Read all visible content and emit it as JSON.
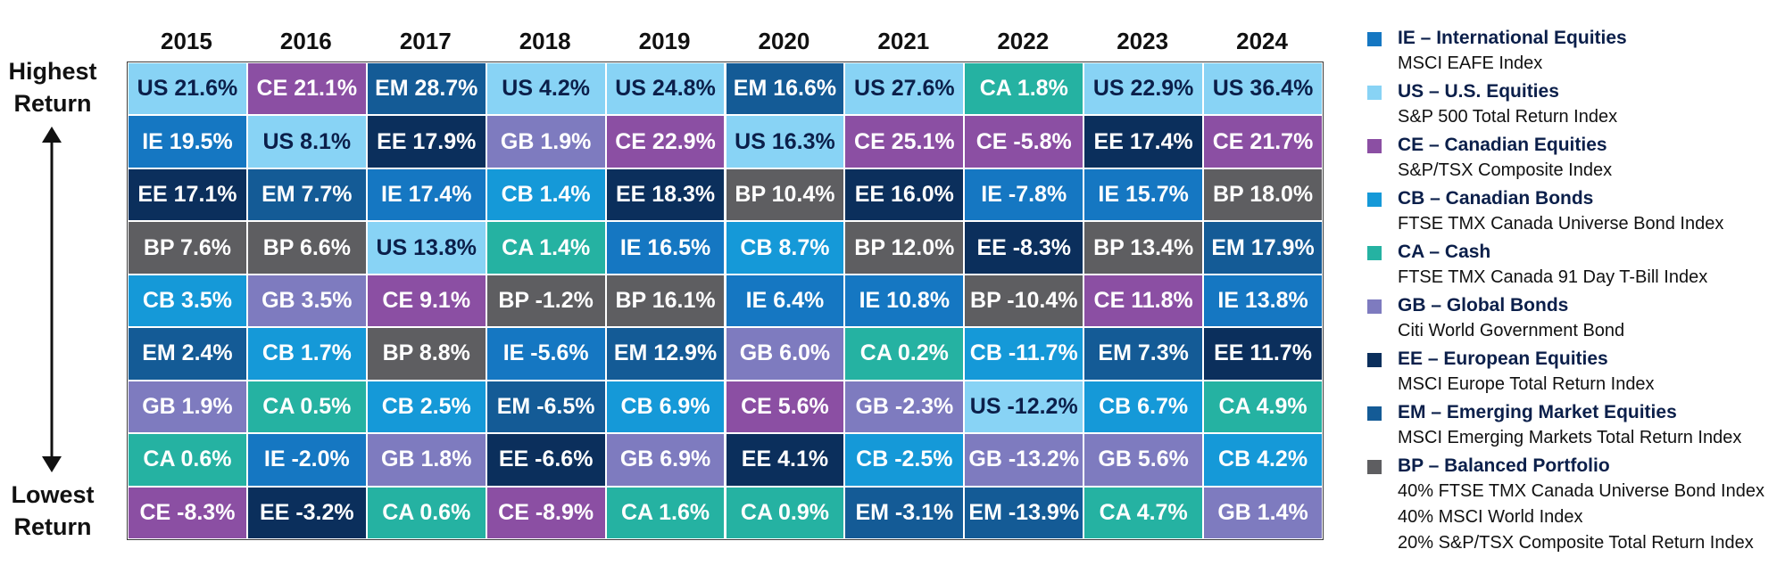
{
  "axis": {
    "high_label_line1": "Highest",
    "high_label_line2": "Return",
    "low_label_line1": "Lowest",
    "low_label_line2": "Return"
  },
  "chart_data": {
    "type": "table",
    "years": [
      "2015",
      "2016",
      "2017",
      "2018",
      "2019",
      "2020",
      "2021",
      "2022",
      "2023",
      "2024"
    ],
    "columns": [
      [
        [
          "US",
          21.6
        ],
        [
          "IE",
          19.5
        ],
        [
          "EE",
          17.1
        ],
        [
          "BP",
          7.6
        ],
        [
          "CB",
          3.5
        ],
        [
          "EM",
          2.4
        ],
        [
          "GB",
          1.9
        ],
        [
          "CA",
          0.6
        ],
        [
          "CE",
          -8.3
        ]
      ],
      [
        [
          "CE",
          21.1
        ],
        [
          "US",
          8.1
        ],
        [
          "EM",
          7.7
        ],
        [
          "BP",
          6.6
        ],
        [
          "GB",
          3.5
        ],
        [
          "CB",
          1.7
        ],
        [
          "CA",
          0.5
        ],
        [
          "IE",
          -2.0
        ],
        [
          "EE",
          -3.2
        ]
      ],
      [
        [
          "EM",
          28.7
        ],
        [
          "EE",
          17.9
        ],
        [
          "IE",
          17.4
        ],
        [
          "US",
          13.8
        ],
        [
          "CE",
          9.1
        ],
        [
          "BP",
          8.8
        ],
        [
          "CB",
          2.5
        ],
        [
          "GB",
          1.8
        ],
        [
          "CA",
          0.6
        ]
      ],
      [
        [
          "US",
          4.2
        ],
        [
          "GB",
          1.9
        ],
        [
          "CB",
          1.4
        ],
        [
          "CA",
          1.4
        ],
        [
          "BP",
          -1.2
        ],
        [
          "IE",
          -5.6
        ],
        [
          "EM",
          -6.5
        ],
        [
          "EE",
          -6.6
        ],
        [
          "CE",
          -8.9
        ]
      ],
      [
        [
          "US",
          24.8
        ],
        [
          "CE",
          22.9
        ],
        [
          "EE",
          18.3
        ],
        [
          "IE",
          16.5
        ],
        [
          "BP",
          16.1
        ],
        [
          "EM",
          12.9
        ],
        [
          "CB",
          6.9
        ],
        [
          "GB",
          6.9
        ],
        [
          "CA",
          1.6
        ]
      ],
      [
        [
          "EM",
          16.6
        ],
        [
          "US",
          16.3
        ],
        [
          "BP",
          10.4
        ],
        [
          "CB",
          8.7
        ],
        [
          "IE",
          6.4
        ],
        [
          "GB",
          6.0
        ],
        [
          "CE",
          5.6
        ],
        [
          "EE",
          4.1
        ],
        [
          "CA",
          0.9
        ]
      ],
      [
        [
          "US",
          27.6
        ],
        [
          "CE",
          25.1
        ],
        [
          "EE",
          16.0
        ],
        [
          "BP",
          12.0
        ],
        [
          "IE",
          10.8
        ],
        [
          "CA",
          0.2
        ],
        [
          "GB",
          -2.3
        ],
        [
          "CB",
          -2.5
        ],
        [
          "EM",
          -3.1
        ]
      ],
      [
        [
          "CA",
          1.8
        ],
        [
          "CE",
          -5.8
        ],
        [
          "IE",
          -7.8
        ],
        [
          "EE",
          -8.3
        ],
        [
          "BP",
          -10.4
        ],
        [
          "CB",
          -11.7
        ],
        [
          "US",
          -12.2
        ],
        [
          "GB",
          -13.2
        ],
        [
          "EM",
          -13.9
        ]
      ],
      [
        [
          "US",
          22.9
        ],
        [
          "EE",
          17.4
        ],
        [
          "IE",
          15.7
        ],
        [
          "BP",
          13.4
        ],
        [
          "CE",
          11.8
        ],
        [
          "EM",
          7.3
        ],
        [
          "CB",
          6.7
        ],
        [
          "GB",
          5.6
        ],
        [
          "CA",
          4.7
        ]
      ],
      [
        [
          "US",
          36.4
        ],
        [
          "CE",
          21.7
        ],
        [
          "BP",
          18.0
        ],
        [
          "EM",
          17.9
        ],
        [
          "IE",
          13.8
        ],
        [
          "EE",
          11.7
        ],
        [
          "CA",
          4.9
        ],
        [
          "CB",
          4.2
        ],
        [
          "GB",
          1.4
        ]
      ]
    ],
    "colors": {
      "IE": "#1577c2",
      "US": "#88d3f5",
      "CE": "#8b4fa3",
      "CB": "#1599d8",
      "CA": "#25b2a2",
      "GB": "#7e7bbf",
      "EE": "#0b2f5c",
      "EM": "#145b96",
      "BP": "#5e5e61"
    },
    "dark_text_codes": [
      "US"
    ]
  },
  "legend": [
    {
      "code": "IE",
      "title": "IE – International Equities",
      "lines": [
        "MSCI EAFE Index"
      ]
    },
    {
      "code": "US",
      "title": "US – U.S. Equities",
      "lines": [
        "S&P 500 Total Return Index"
      ]
    },
    {
      "code": "CE",
      "title": "CE – Canadian Equities",
      "lines": [
        "S&P/TSX Composite Index"
      ]
    },
    {
      "code": "CB",
      "title": "CB – Canadian Bonds",
      "lines": [
        "FTSE TMX Canada Universe Bond Index"
      ]
    },
    {
      "code": "CA",
      "title": "CA – Cash",
      "lines": [
        "FTSE TMX Canada 91 Day T-Bill Index"
      ]
    },
    {
      "code": "GB",
      "title": "GB – Global Bonds",
      "lines": [
        "Citi World Government Bond"
      ]
    },
    {
      "code": "EE",
      "title": "EE – European Equities",
      "lines": [
        "MSCI Europe Total Return Index"
      ]
    },
    {
      "code": "EM",
      "title": "EM – Emerging Market Equities",
      "lines": [
        "MSCI Emerging Markets Total Return Index"
      ]
    },
    {
      "code": "BP",
      "title": "BP – Balanced Portfolio",
      "lines": [
        "40% FTSE TMX Canada Universe Bond Index",
        "40% MSCI World Index",
        "20% S&P/TSX Composite Total Return Index"
      ]
    }
  ]
}
